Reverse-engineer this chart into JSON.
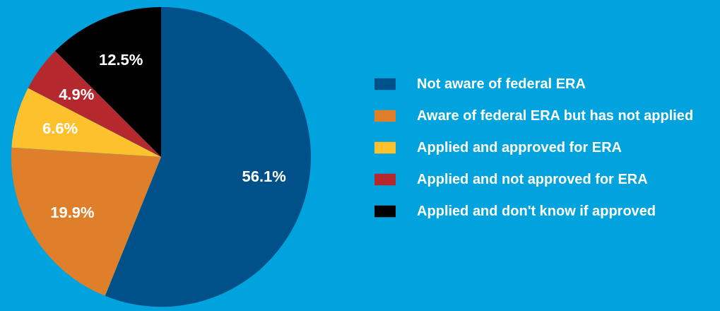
{
  "chart_data": {
    "type": "pie",
    "categories": [
      "Not aware of federal ERA",
      "Aware of federal ERA but has not applied",
      "Applied and approved for ERA",
      "Applied and not approved for ERA",
      "Applied and don't know if approved"
    ],
    "values": [
      56.1,
      19.9,
      6.6,
      4.9,
      12.5
    ],
    "colors": [
      "#00508a",
      "#e07f2a",
      "#fdc12d",
      "#b5282e",
      "#000000"
    ],
    "value_labels": [
      "56.1%",
      "19.9%",
      "6.6%",
      "4.9%",
      "12.5%"
    ],
    "legend": "right"
  }
}
